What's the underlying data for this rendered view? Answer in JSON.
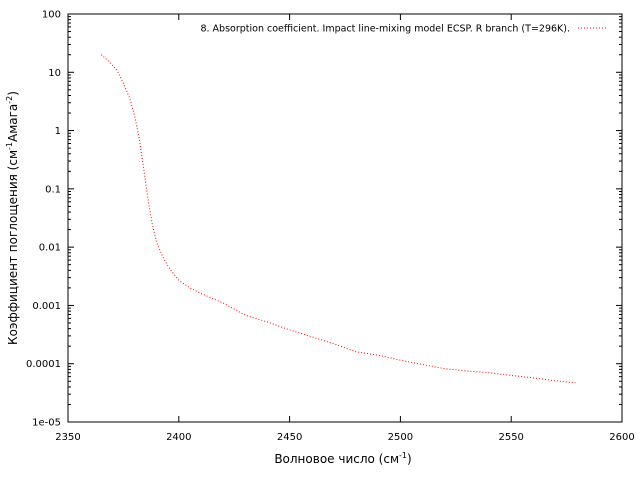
{
  "chart_data": {
    "type": "line",
    "title": "",
    "xlabel": "Волновое число (см",
    "xlabel_sup": "-1",
    "xlabel_suffix": ")",
    "ylabel": "Коэффициент поглощения (см",
    "ylabel_sup1": "-1",
    "ylabel_mid": "Амага",
    "ylabel_sup2": "-2",
    "ylabel_suffix": ")",
    "xlim": [
      2350,
      2600
    ],
    "ylim": [
      1e-05,
      100
    ],
    "yscale": "log",
    "xticks": [
      2350,
      2400,
      2450,
      2500,
      2550,
      2600
    ],
    "xtick_labels": [
      "2350",
      "2400",
      "2450",
      "2500",
      "2550",
      "2600"
    ],
    "yticks": [
      1e-05,
      0.0001,
      0.001,
      0.01,
      0.1,
      1,
      10,
      100
    ],
    "ytick_labels": [
      "1e-05",
      "0.0001",
      "0.001",
      "0.01",
      "0.1",
      "1",
      "10",
      "100"
    ],
    "grid": false,
    "legend_position": "top-right",
    "series": [
      {
        "name": "8. Absorption coefficient. Impact line-mixing model ECSP. R branch (T=296K).",
        "color": "#ff0000",
        "style": "dotted",
        "points": [
          [
            2365,
            20
          ],
          [
            2368,
            16
          ],
          [
            2372,
            11
          ],
          [
            2375,
            6.5
          ],
          [
            2378,
            3.5
          ],
          [
            2380,
            1.8
          ],
          [
            2382,
            0.8
          ],
          [
            2384,
            0.25
          ],
          [
            2386,
            0.07
          ],
          [
            2388,
            0.025
          ],
          [
            2390,
            0.012
          ],
          [
            2393,
            0.0065
          ],
          [
            2396,
            0.0042
          ],
          [
            2400,
            0.0027
          ],
          [
            2405,
            0.002
          ],
          [
            2410,
            0.0016
          ],
          [
            2420,
            0.0011
          ],
          [
            2430,
            0.00068
          ],
          [
            2440,
            0.00052
          ],
          [
            2450,
            0.00038
          ],
          [
            2460,
            0.00029
          ],
          [
            2470,
            0.00022
          ],
          [
            2480,
            0.00016
          ],
          [
            2490,
            0.00014
          ],
          [
            2500,
            0.000115
          ],
          [
            2510,
            9.7e-05
          ],
          [
            2520,
            8.2e-05
          ],
          [
            2530,
            7.5e-05
          ],
          [
            2540,
            7e-05
          ],
          [
            2550,
            6.3e-05
          ],
          [
            2560,
            5.7e-05
          ],
          [
            2570,
            5.1e-05
          ],
          [
            2579,
            4.7e-05
          ]
        ]
      }
    ]
  }
}
